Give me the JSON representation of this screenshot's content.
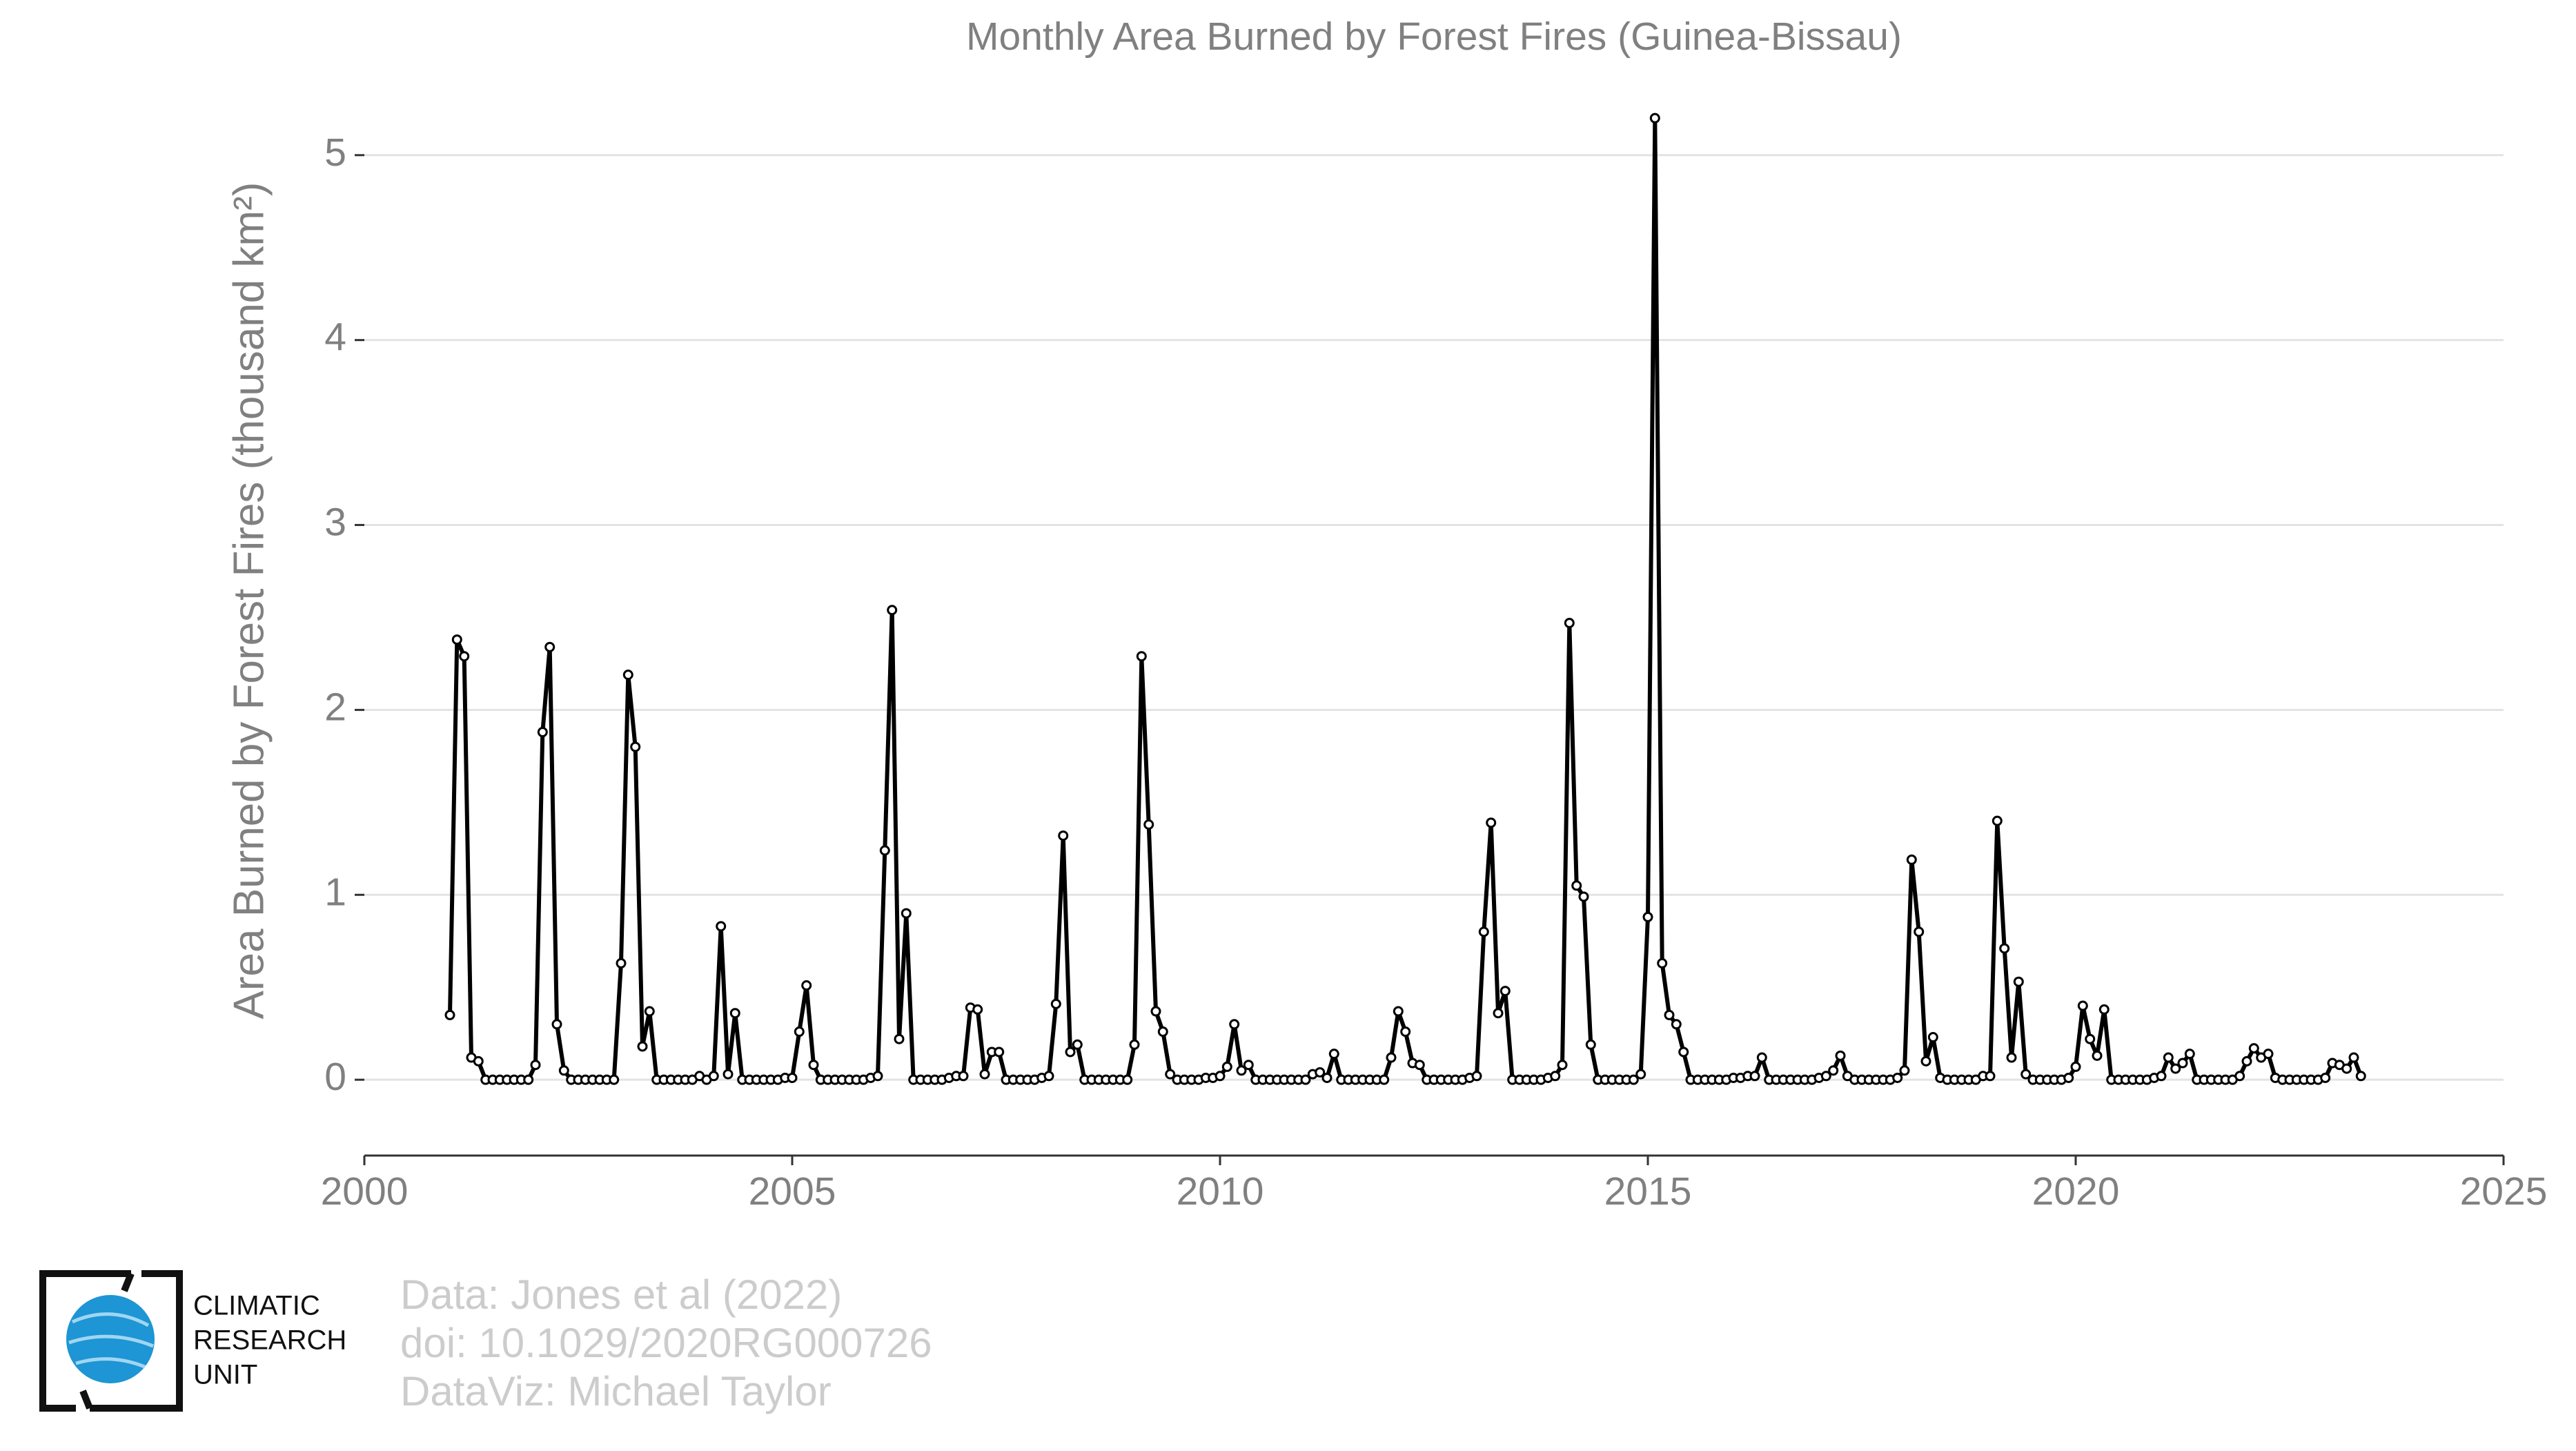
{
  "chart_data": {
    "type": "line",
    "title": "Monthly Area Burned by Forest Fires (Guinea-Bissau)",
    "y_label": "Area Burned by Forest Fires (thousand km²)",
    "color": "#000000",
    "xlim": [
      2000,
      2025
    ],
    "xticks": [
      2000,
      2005,
      2010,
      2015,
      2020,
      2025
    ],
    "ylim": [
      -0.41,
      5.35
    ],
    "yticks": [
      0,
      1,
      2,
      3,
      4,
      5
    ],
    "grid": true,
    "x": [
      2001,
      2001.083,
      2001.167,
      2001.25,
      2001.333,
      2001.417,
      2001.5,
      2001.583,
      2001.667,
      2001.75,
      2001.833,
      2001.917,
      2002,
      2002.083,
      2002.167,
      2002.25,
      2002.333,
      2002.417,
      2002.5,
      2002.583,
      2002.667,
      2002.75,
      2002.833,
      2002.917,
      2003,
      2003.083,
      2003.167,
      2003.25,
      2003.333,
      2003.417,
      2003.5,
      2003.583,
      2003.667,
      2003.75,
      2003.833,
      2003.917,
      2004,
      2004.083,
      2004.167,
      2004.25,
      2004.333,
      2004.417,
      2004.5,
      2004.583,
      2004.667,
      2004.75,
      2004.833,
      2004.917,
      2005,
      2005.083,
      2005.167,
      2005.25,
      2005.333,
      2005.417,
      2005.5,
      2005.583,
      2005.667,
      2005.75,
      2005.833,
      2005.917,
      2006,
      2006.083,
      2006.167,
      2006.25,
      2006.333,
      2006.417,
      2006.5,
      2006.583,
      2006.667,
      2006.75,
      2006.833,
      2006.917,
      2007,
      2007.083,
      2007.167,
      2007.25,
      2007.333,
      2007.417,
      2007.5,
      2007.583,
      2007.667,
      2007.75,
      2007.833,
      2007.917,
      2008,
      2008.083,
      2008.167,
      2008.25,
      2008.333,
      2008.417,
      2008.5,
      2008.583,
      2008.667,
      2008.75,
      2008.833,
      2008.917,
      2009,
      2009.083,
      2009.167,
      2009.25,
      2009.333,
      2009.417,
      2009.5,
      2009.583,
      2009.667,
      2009.75,
      2009.833,
      2009.917,
      2010,
      2010.083,
      2010.167,
      2010.25,
      2010.333,
      2010.417,
      2010.5,
      2010.583,
      2010.667,
      2010.75,
      2010.833,
      2010.917,
      2011,
      2011.083,
      2011.167,
      2011.25,
      2011.333,
      2011.417,
      2011.5,
      2011.583,
      2011.667,
      2011.75,
      2011.833,
      2011.917,
      2012,
      2012.083,
      2012.167,
      2012.25,
      2012.333,
      2012.417,
      2012.5,
      2012.583,
      2012.667,
      2012.75,
      2012.833,
      2012.917,
      2013,
      2013.083,
      2013.167,
      2013.25,
      2013.333,
      2013.417,
      2013.5,
      2013.583,
      2013.667,
      2013.75,
      2013.833,
      2013.917,
      2014,
      2014.083,
      2014.167,
      2014.25,
      2014.333,
      2014.417,
      2014.5,
      2014.583,
      2014.667,
      2014.75,
      2014.833,
      2014.917,
      2015,
      2015.083,
      2015.167,
      2015.25,
      2015.333,
      2015.417,
      2015.5,
      2015.583,
      2015.667,
      2015.75,
      2015.833,
      2015.917,
      2016,
      2016.083,
      2016.167,
      2016.25,
      2016.333,
      2016.417,
      2016.5,
      2016.583,
      2016.667,
      2016.75,
      2016.833,
      2016.917,
      2017,
      2017.083,
      2017.167,
      2017.25,
      2017.333,
      2017.417,
      2017.5,
      2017.583,
      2017.667,
      2017.75,
      2017.833,
      2017.917,
      2018,
      2018.083,
      2018.167,
      2018.25,
      2018.333,
      2018.417,
      2018.5,
      2018.583,
      2018.667,
      2018.75,
      2018.833,
      2018.917,
      2019,
      2019.083,
      2019.167,
      2019.25,
      2019.333,
      2019.417,
      2019.5,
      2019.583,
      2019.667,
      2019.75,
      2019.833,
      2019.917,
      2020,
      2020.083,
      2020.167,
      2020.25,
      2020.333,
      2020.417,
      2020.5,
      2020.583,
      2020.667,
      2020.75,
      2020.833,
      2020.917,
      2021,
      2021.083,
      2021.167,
      2021.25,
      2021.333,
      2021.417,
      2021.5,
      2021.583,
      2021.667,
      2021.75,
      2021.833,
      2021.917,
      2022,
      2022.083,
      2022.167,
      2022.25,
      2022.333,
      2022.417,
      2022.5,
      2022.583,
      2022.667,
      2022.75,
      2022.833,
      2022.917,
      2023,
      2023.083,
      2023.167,
      2023.25,
      2023.333
    ],
    "values": [
      0.35,
      2.38,
      2.29,
      0.12,
      0.1,
      0,
      0,
      0,
      0,
      0,
      0,
      0,
      0.08,
      1.88,
      2.34,
      0.3,
      0.05,
      0,
      0,
      0,
      0,
      0,
      0,
      0,
      0.63,
      2.19,
      1.8,
      0.18,
      0.37,
      0,
      0,
      0,
      0,
      0,
      0,
      0.02,
      0,
      0.02,
      0.83,
      0.03,
      0.36,
      0,
      0,
      0,
      0,
      0,
      0,
      0.01,
      0.01,
      0.26,
      0.51,
      0.08,
      0,
      0,
      0,
      0,
      0,
      0,
      0,
      0.01,
      0.02,
      1.24,
      2.54,
      0.22,
      0.9,
      0,
      0,
      0,
      0,
      0,
      0.01,
      0.02,
      0.02,
      0.39,
      0.38,
      0.03,
      0.15,
      0.15,
      0,
      0,
      0,
      0,
      0,
      0.01,
      0.02,
      0.41,
      1.32,
      0.15,
      0.19,
      0,
      0,
      0,
      0,
      0,
      0,
      0,
      0.19,
      2.29,
      1.38,
      0.37,
      0.26,
      0.03,
      0,
      0,
      0,
      0,
      0.01,
      0.01,
      0.02,
      0.07,
      0.3,
      0.05,
      0.08,
      0,
      0,
      0,
      0,
      0,
      0,
      0,
      0,
      0.03,
      0.04,
      0.01,
      0.14,
      0,
      0,
      0,
      0,
      0,
      0,
      0,
      0.12,
      0.37,
      0.26,
      0.09,
      0.08,
      0,
      0,
      0,
      0,
      0,
      0,
      0.01,
      0.02,
      0.8,
      1.39,
      0.36,
      0.48,
      0,
      0,
      0,
      0,
      0,
      0.01,
      0.02,
      0.08,
      2.47,
      1.05,
      0.99,
      0.19,
      0,
      0,
      0,
      0,
      0,
      0,
      0.03,
      0.88,
      5.2,
      0.63,
      0.35,
      0.3,
      0.15,
      0,
      0,
      0,
      0,
      0,
      0,
      0.01,
      0.01,
      0.02,
      0.02,
      0.12,
      0,
      0,
      0,
      0,
      0,
      0,
      0,
      0.01,
      0.02,
      0.05,
      0.13,
      0.02,
      0,
      0,
      0,
      0,
      0,
      0,
      0.01,
      0.05,
      1.19,
      0.8,
      0.1,
      0.23,
      0.01,
      0,
      0,
      0,
      0,
      0,
      0.02,
      0.02,
      1.4,
      0.71,
      0.12,
      0.53,
      0.03,
      0,
      0,
      0,
      0,
      0,
      0.01,
      0.07,
      0.4,
      0.22,
      0.13,
      0.38,
      0,
      0,
      0,
      0,
      0,
      0,
      0.01,
      0.02,
      0.12,
      0.06,
      0.09,
      0.14,
      0,
      0,
      0,
      0,
      0,
      0,
      0.02,
      0.1,
      0.17,
      0.12,
      0.14,
      0.01,
      0,
      0,
      0,
      0,
      0,
      0,
      0.01,
      0.09,
      0.08,
      0.06,
      0.12,
      0.02
    ]
  },
  "logo": {
    "lines": [
      "CLIMATIC",
      "RESEARCH",
      "UNIT"
    ]
  },
  "credits": [
    "Data: Jones et al (2022)",
    "doi: 10.1029/2020RG000726",
    "DataViz: Michael Taylor"
  ]
}
